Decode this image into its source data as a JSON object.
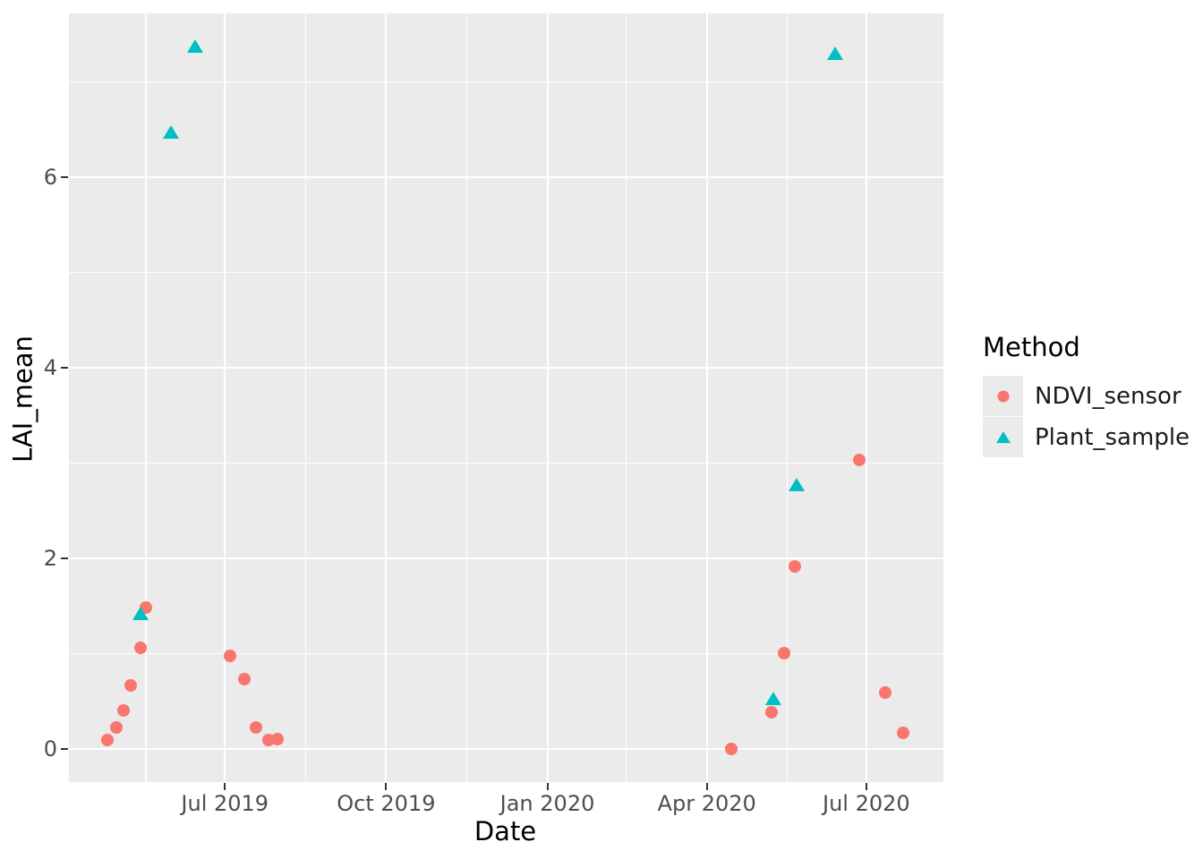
{
  "style": {
    "background": "#FFFFFF",
    "panel_bg": "#EBEBEB",
    "grid_color": "#FFFFFF",
    "tick_label_color": "#4D4D4D",
    "tick_mark_color": "#333333",
    "axis_title_color": "#000000",
    "legend_key_bg": "#EBEBEB",
    "ndvi_color": "#F8766D",
    "plant_color": "#00BFC4"
  },
  "legend": {
    "title": "Method",
    "items": [
      {
        "label": "NDVI_sensor",
        "shape": "circle",
        "color": "#F8766D",
        "glyph": "circle-glyph"
      },
      {
        "label": "Plant_sample",
        "shape": "triangle",
        "color": "#00BFC4",
        "glyph": "triangle-glyph"
      }
    ]
  },
  "chart_data": {
    "type": "scatter",
    "title": "",
    "xlabel": "Date",
    "ylabel": "LAI_mean",
    "grid": true,
    "legend_position": "right",
    "x_range": [
      "2019-04-03",
      "2020-08-14"
    ],
    "y_range": [
      -0.35,
      7.72
    ],
    "x_ticks": [
      {
        "date": "2019-07-01",
        "label": "Jul 2019"
      },
      {
        "date": "2019-10-01",
        "label": "Oct 2019"
      },
      {
        "date": "2020-01-01",
        "label": "Jan 2020"
      },
      {
        "date": "2020-04-01",
        "label": "Apr 2020"
      },
      {
        "date": "2020-07-01",
        "label": "Jul 2020"
      }
    ],
    "x_minor_ticks": [
      "2019-05-17",
      "2019-08-16",
      "2019-11-16",
      "2020-02-15",
      "2020-05-17"
    ],
    "y_ticks": [
      {
        "value": 0,
        "label": "0"
      },
      {
        "value": 2,
        "label": "2"
      },
      {
        "value": 4,
        "label": "4"
      },
      {
        "value": 6,
        "label": "6"
      }
    ],
    "y_minor_ticks": [
      1,
      3,
      5,
      7
    ],
    "series": [
      {
        "name": "NDVI_sensor",
        "shape": "circle",
        "color": "#F8766D",
        "points": [
          {
            "date": "2019-04-25",
            "value": 0.09
          },
          {
            "date": "2019-04-30",
            "value": 0.22
          },
          {
            "date": "2019-05-04",
            "value": 0.4
          },
          {
            "date": "2019-05-08",
            "value": 0.66
          },
          {
            "date": "2019-05-14",
            "value": 1.06
          },
          {
            "date": "2019-05-17",
            "value": 1.48
          },
          {
            "date": "2019-07-04",
            "value": 0.97
          },
          {
            "date": "2019-07-12",
            "value": 0.73
          },
          {
            "date": "2019-07-19",
            "value": 0.22
          },
          {
            "date": "2019-07-26",
            "value": 0.09
          },
          {
            "date": "2019-07-31",
            "value": 0.1
          },
          {
            "date": "2020-04-15",
            "value": 0.0
          },
          {
            "date": "2020-05-08",
            "value": 0.38
          },
          {
            "date": "2020-05-15",
            "value": 1.0
          },
          {
            "date": "2020-05-21",
            "value": 1.91
          },
          {
            "date": "2020-06-27",
            "value": 3.03
          },
          {
            "date": "2020-07-12",
            "value": 0.59
          },
          {
            "date": "2020-07-22",
            "value": 0.17
          }
        ]
      },
      {
        "name": "Plant_sample",
        "shape": "triangle",
        "color": "#00BFC4",
        "points": [
          {
            "date": "2019-05-14",
            "value": 1.42
          },
          {
            "date": "2019-05-31",
            "value": 6.47
          },
          {
            "date": "2019-06-14",
            "value": 7.37
          },
          {
            "date": "2020-05-09",
            "value": 0.52
          },
          {
            "date": "2020-05-22",
            "value": 2.77
          },
          {
            "date": "2020-06-13",
            "value": 7.3
          }
        ]
      }
    ]
  }
}
